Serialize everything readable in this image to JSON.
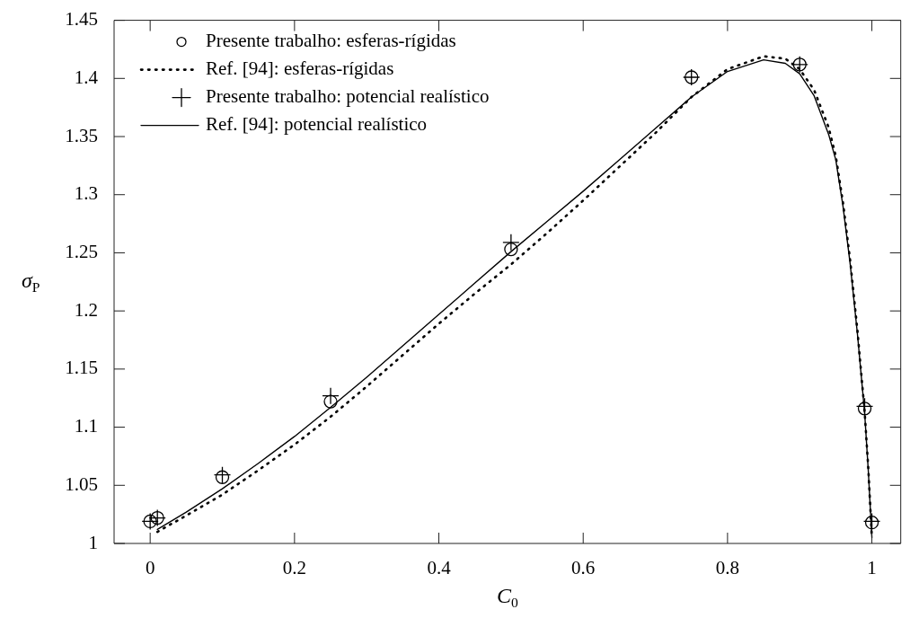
{
  "chart_data": {
    "type": "line",
    "xlabel": "C$_{0}$",
    "ylabel": "σ$_{P}$",
    "xlim": [
      -0.05,
      1.04
    ],
    "xticks": [
      0,
      0.2,
      0.4,
      0.6,
      0.8,
      1
    ],
    "ylim": [
      1,
      1.45
    ],
    "yticks": [
      1,
      1.05,
      1.1,
      1.15,
      1.2,
      1.25,
      1.3,
      1.35,
      1.4,
      1.45
    ],
    "grid": false,
    "legend": "top left",
    "series": [
      {
        "type": "scatter",
        "name": "Presente trabalho: esferas-rígidas",
        "color": "#000000",
        "marker": "circle",
        "x": [
          0,
          0.01,
          0.1,
          0.25,
          0.5,
          0.75,
          0.9,
          0.99,
          1
        ],
        "values": [
          1.019,
          1.022,
          1.057,
          1.122,
          1.253,
          1.401,
          1.412,
          1.116,
          1.018
        ]
      },
      {
        "name": "Ref. [94]: esferas-rígidas",
        "color": "#000000",
        "marker": "none",
        "line_style": "dotted",
        "x": [
          0.01,
          0.05,
          0.1,
          0.15,
          0.2,
          0.25,
          0.3,
          0.35,
          0.4,
          0.45,
          0.5,
          0.55,
          0.6,
          0.65,
          0.7,
          0.75,
          0.8,
          0.85,
          0.88,
          0.9,
          0.92,
          0.94,
          0.95,
          0.96,
          0.97,
          0.98,
          0.99,
          0.995,
          1
        ],
        "values": [
          1.01,
          1.024,
          1.042,
          1.063,
          1.085,
          1.109,
          1.135,
          1.162,
          1.189,
          1.215,
          1.24,
          1.267,
          1.295,
          1.324,
          1.353,
          1.384,
          1.408,
          1.419,
          1.417,
          1.408,
          1.39,
          1.358,
          1.333,
          1.293,
          1.243,
          1.183,
          1.113,
          1.065,
          1.005
        ]
      },
      {
        "type": "scatter",
        "name": "Presente trabalho: potencial realístico",
        "color": "#000000",
        "marker": "cross",
        "x": [
          0,
          0.01,
          0.1,
          0.25,
          0.5,
          0.75,
          0.9,
          0.99,
          1
        ],
        "values": [
          1.019,
          1.022,
          1.059,
          1.127,
          1.259,
          1.401,
          1.412,
          1.118,
          1.019
        ]
      },
      {
        "name": "Ref. [94]: potencial realístico",
        "color": "#000000",
        "marker": "none",
        "line_style": "solid",
        "x": [
          0.01,
          0.05,
          0.1,
          0.15,
          0.2,
          0.25,
          0.3,
          0.35,
          0.4,
          0.45,
          0.5,
          0.55,
          0.6,
          0.65,
          0.7,
          0.75,
          0.8,
          0.85,
          0.88,
          0.9,
          0.92,
          0.94,
          0.95,
          0.96,
          0.97,
          0.98,
          0.99,
          0.995,
          1
        ],
        "values": [
          1.012,
          1.027,
          1.047,
          1.069,
          1.092,
          1.117,
          1.143,
          1.17,
          1.197,
          1.224,
          1.251,
          1.277,
          1.303,
          1.33,
          1.357,
          1.384,
          1.406,
          1.416,
          1.413,
          1.404,
          1.385,
          1.352,
          1.33,
          1.29,
          1.24,
          1.18,
          1.112,
          1.063,
          1.005
        ]
      }
    ]
  }
}
